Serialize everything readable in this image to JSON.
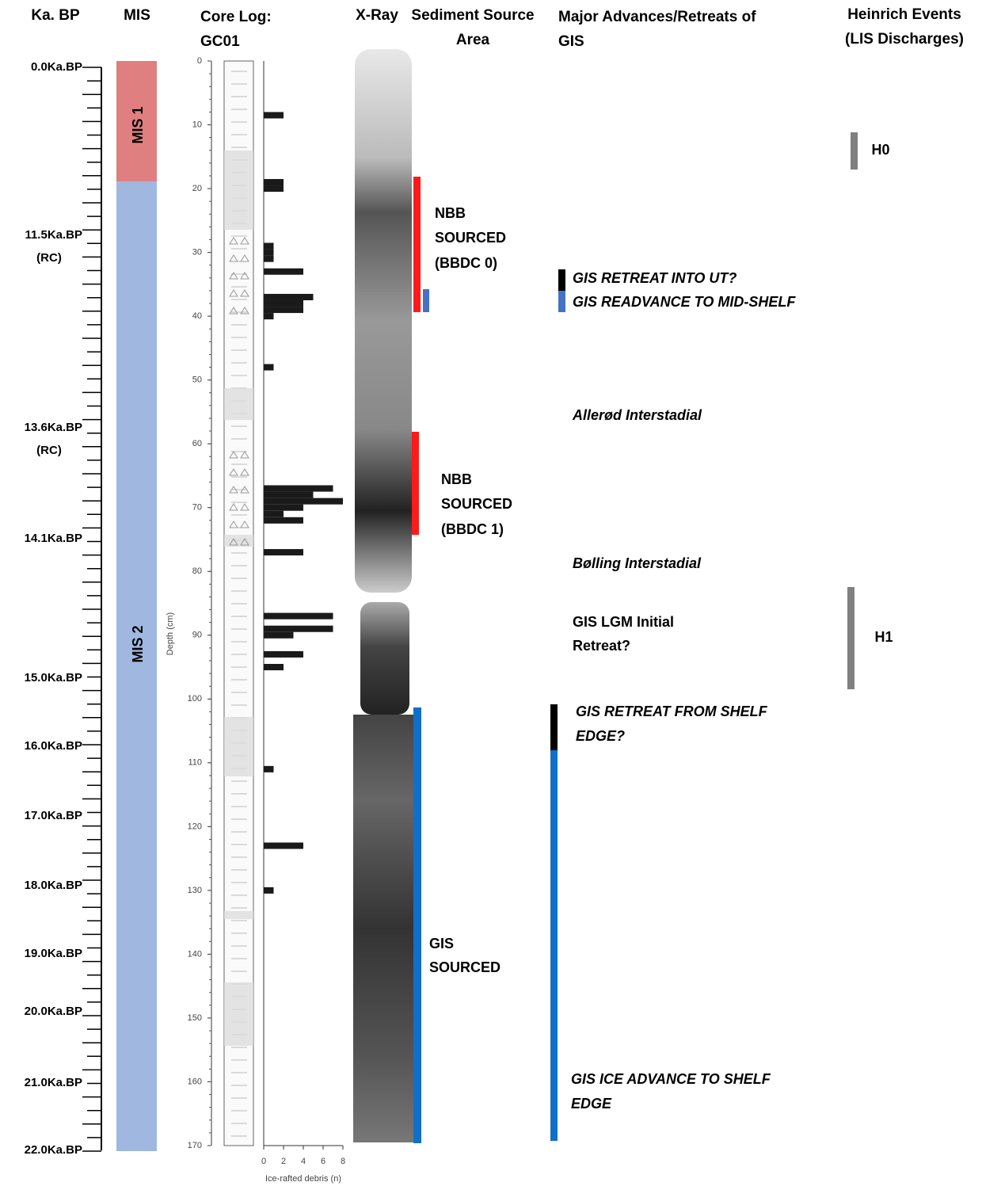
{
  "headers": {
    "age": "Ka. BP",
    "mis": "MIS",
    "core_log": [
      "Core Log:",
      "GC01"
    ],
    "xray": "X-Ray",
    "source": [
      "Sediment Source",
      "Area"
    ],
    "advances": [
      "Major Advances/Retreats of",
      "GIS"
    ],
    "heinrich": [
      "Heinrich Events",
      "(LIS Discharges)"
    ]
  },
  "age_labels": [
    {
      "text": "0.0Ka.BP"
    },
    {
      "text": "11.5Ka.BP",
      "note": "(RC)"
    },
    {
      "text": "13.6Ka.BP",
      "note": "(RC)"
    },
    {
      "text": "14.1Ka.BP"
    },
    {
      "text": "15.0Ka.BP"
    },
    {
      "text": "16.0Ka.BP"
    },
    {
      "text": "17.0Ka.BP"
    },
    {
      "text": "18.0Ka.BP"
    },
    {
      "text": "19.0Ka.BP"
    },
    {
      "text": "20.0Ka.BP"
    },
    {
      "text": "21.0Ka.BP"
    },
    {
      "text": "22.0Ka.BP"
    }
  ],
  "mis_labels": [
    "MIS 1",
    "MIS 2"
  ],
  "chart_data": {
    "type": "bar",
    "xlabel": "Ice-rafted debris (n)",
    "ylabel": "Depth (cm)",
    "x": [
      8.5,
      19,
      20,
      29,
      30,
      31,
      33,
      37,
      38,
      39,
      40,
      48,
      67,
      68,
      69,
      70,
      71,
      72,
      77,
      87,
      89,
      90,
      93,
      95,
      111,
      123,
      130
    ],
    "values": [
      2,
      2,
      2,
      1,
      1,
      1,
      4,
      5,
      4,
      4,
      1,
      1,
      7,
      5,
      8,
      4,
      2,
      4,
      4,
      7,
      7,
      3,
      4,
      2,
      1,
      4,
      1
    ],
    "color": "#1a1a1a",
    "xlim": [
      0,
      8
    ],
    "xticks": [
      0,
      2,
      4,
      6,
      8
    ],
    "ylim": [
      0,
      170
    ],
    "yticks": [
      0,
      10,
      20,
      30,
      40,
      50,
      60,
      70,
      80,
      90,
      100,
      110,
      120,
      130,
      140,
      150,
      160,
      170
    ]
  },
  "source_labels": [
    [
      "NBB",
      "SOURCED",
      "(BBDC 0)"
    ],
    [
      "NBB",
      "SOURCED",
      "(BBDC 1)"
    ],
    [
      "GIS",
      "SOURCED"
    ]
  ],
  "events": [
    [
      "GIS RETREAT INTO UT?"
    ],
    [
      "GIS READVANCE TO MID-SHELF"
    ],
    [
      "Allerød Interstadial"
    ],
    [
      "Bølling Interstadial"
    ],
    [
      "GIS LGM Initial",
      "Retreat?"
    ],
    [
      "GIS RETREAT FROM SHELF",
      "EDGE?"
    ],
    [
      "GIS ICE ADVANCE TO SHELF",
      "EDGE"
    ]
  ],
  "heinrich_labels": [
    "H0",
    "H1"
  ]
}
